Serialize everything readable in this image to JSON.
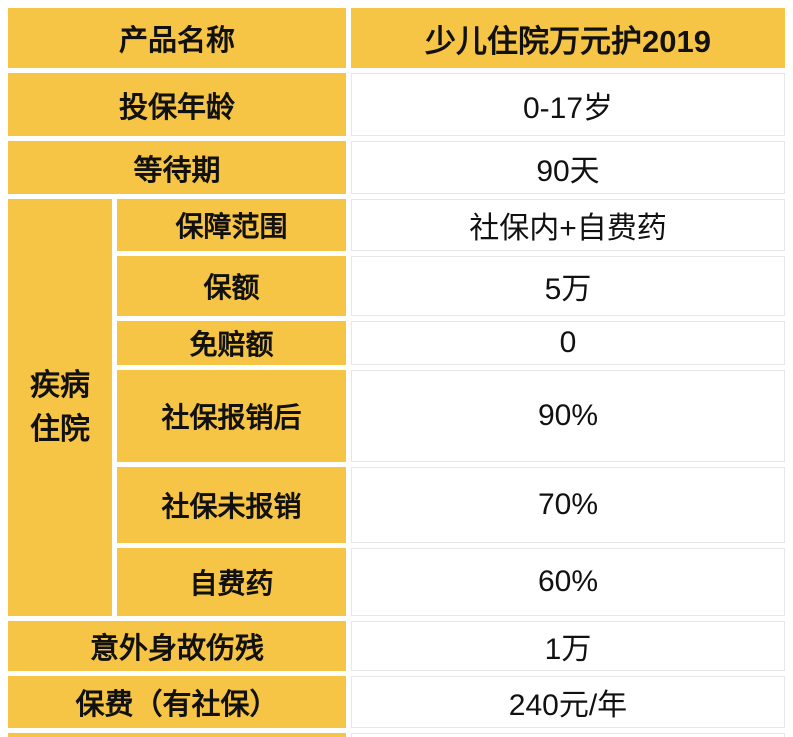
{
  "table": {
    "colors": {
      "accent_yellow": "#F7C545",
      "text": "#111111",
      "cell_border": "#e7e7e7"
    },
    "header": {
      "label": "产品名称",
      "value": "少儿住院万元护2019"
    },
    "rows_top": [
      {
        "label": "投保年龄",
        "value": "0-17岁"
      },
      {
        "label": "等待期",
        "value": "90天"
      }
    ],
    "group": {
      "label": "疾病住院",
      "label_lines": [
        "疾病",
        "住院"
      ],
      "rows": [
        {
          "label": "保障范围",
          "value": "社保内+自费药"
        },
        {
          "label": "保额",
          "value": "5万"
        },
        {
          "label": "免赔额",
          "value": "0"
        },
        {
          "label": "社保报销后",
          "value": "90%"
        },
        {
          "label": "社保未报销",
          "value": "70%"
        },
        {
          "label": "自费药",
          "value": "60%"
        }
      ]
    },
    "rows_bottom": [
      {
        "label": "意外身故伤残",
        "value": "1万"
      },
      {
        "label": "保费（有社保）",
        "value": "240元/年"
      }
    ]
  }
}
